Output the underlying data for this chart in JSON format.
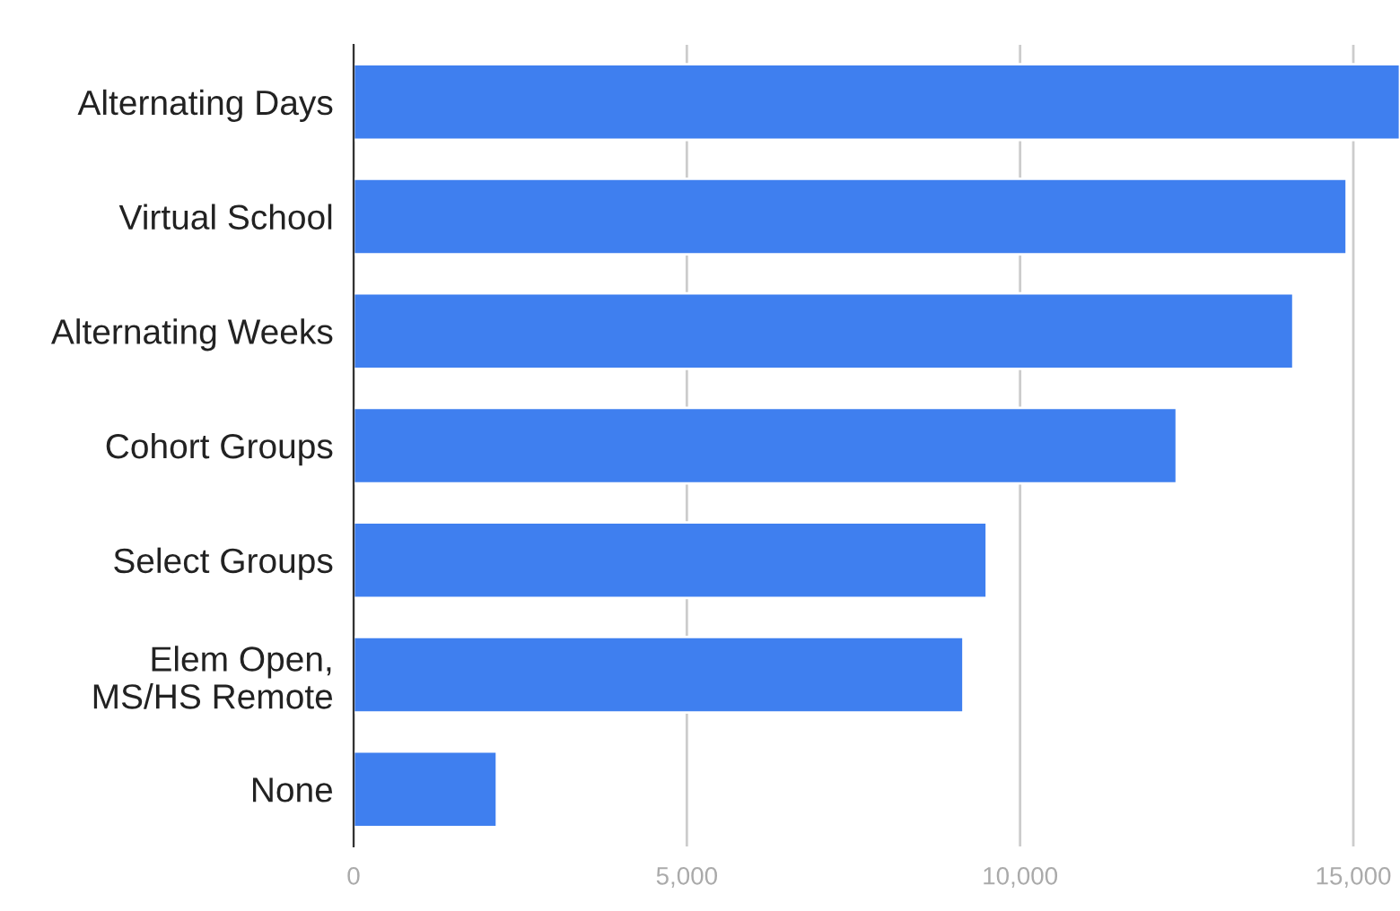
{
  "chart_data": {
    "type": "bar",
    "orientation": "horizontal",
    "categories": [
      "Alternating Days",
      "Virtual School",
      "Alternating Weeks",
      "Cohort Groups",
      "Select Groups",
      "Elem Open,\nMS/HS Remote",
      "None"
    ],
    "values": [
      15700,
      14900,
      14100,
      12350,
      9500,
      9150,
      2150
    ],
    "color": "#3f7fef",
    "xlim": [
      0,
      15700
    ],
    "xticks": [
      0,
      {
        "value": 5000,
        "label": "5,000"
      },
      {
        "value": 10000,
        "label": "10,000"
      },
      {
        "value": 15000,
        "label": "15,000"
      }
    ],
    "grid": "x"
  }
}
